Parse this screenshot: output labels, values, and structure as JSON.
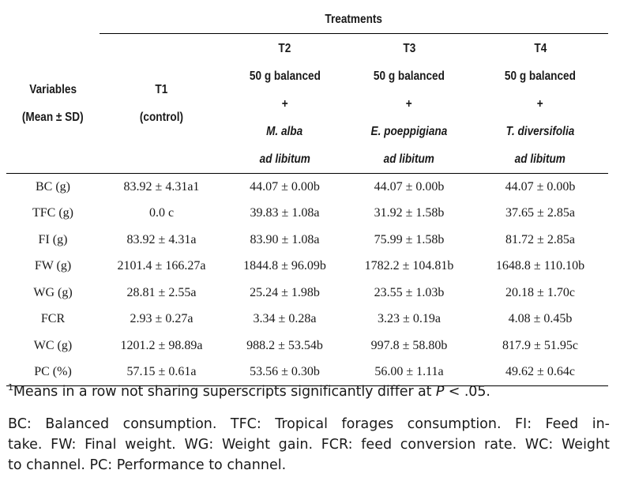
{
  "header": {
    "treatments": "Treatments",
    "variables_line1": "Variables",
    "variables_line2": "(Mean ± SD)",
    "t1": {
      "code": "T1",
      "desc": "(control)"
    },
    "t2": {
      "code": "T2",
      "line1": "50 g balanced",
      "plus": "+",
      "species": "M. alba",
      "adlib": "ad libitum"
    },
    "t3": {
      "code": "T3",
      "line1": "50 g balanced",
      "plus": "+",
      "species": "E. poeppigiana",
      "adlib": "ad libitum"
    },
    "t4": {
      "code": "T4",
      "line1": "50 g balanced",
      "plus": "+",
      "species": "T. diversifolia",
      "adlib": "ad libitum"
    }
  },
  "rows": [
    {
      "var": "BC (g)",
      "t1": "83.92 ± 4.31a1",
      "t2": "44.07 ± 0.00b",
      "t3": "44.07 ± 0.00b",
      "t4": "44.07 ± 0.00b"
    },
    {
      "var": "TFC (g)",
      "t1": "0.0 c",
      "t2": "39.83 ± 1.08a",
      "t3": "31.92 ± 1.58b",
      "t4": "37.65 ± 2.85a"
    },
    {
      "var": "FI (g)",
      "t1": "83.92 ± 4.31a",
      "t2": "83.90 ± 1.08a",
      "t3": "75.99 ± 1.58b",
      "t4": "81.72 ± 2.85a"
    },
    {
      "var": "FW (g)",
      "t1": "2101.4 ± 166.27a",
      "t2": "1844.8 ± 96.09b",
      "t3": "1782.2 ± 104.81b",
      "t4": "1648.8 ± 110.10b"
    },
    {
      "var": "WG (g)",
      "t1": "28.81 ± 2.55a",
      "t2": "25.24 ± 1.98b",
      "t3": "23.55 ± 1.03b",
      "t4": "20.18 ± 1.70c"
    },
    {
      "var": "FCR",
      "t1": "2.93 ± 0.27a",
      "t2": "3.34 ± 0.28a",
      "t3": "3.23 ± 0.19a",
      "t4": "4.08 ± 0.45b"
    },
    {
      "var": "WC (g)",
      "t1": "1201.2 ± 98.89a",
      "t2": "988.2 ± 53.54b",
      "t3": "997.8 ± 58.80b",
      "t4": "817.9 ± 51.95c"
    },
    {
      "var": "PC (%)",
      "t1": "57.15 ± 0.61a",
      "t2": "53.56 ± 0.30b",
      "t3": "56.00 ± 1.11a",
      "t4": "49.62 ± 0.64c"
    }
  ],
  "footnote": {
    "marker": "1",
    "text_before": "Means in a row not sharing superscripts significantly differ at ",
    "p": "P",
    "text_after": " < .05."
  },
  "legend": {
    "line1": "BC: Balanced consumption. TFC: Tropical forages consumption. FI: Feed in-",
    "line2": "take. FW: Final weight. WG: Weight gain. FCR: feed conversion rate. WC: Weight",
    "line3": "to channel. PC: Performance to channel."
  }
}
